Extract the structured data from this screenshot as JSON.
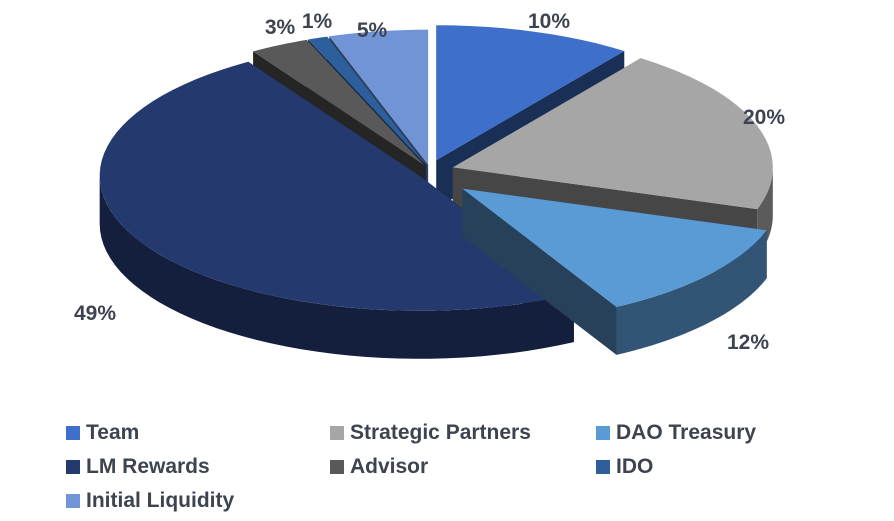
{
  "chart_data": {
    "type": "pie",
    "style": "3d-exploded",
    "legend_position": "bottom",
    "title": "",
    "slices": [
      {
        "label": "Team",
        "value": 10,
        "data_label": "10%",
        "color": "#3d6fcb"
      },
      {
        "label": "Strategic Partners",
        "value": 20,
        "data_label": "20%",
        "color": "#a6a6a6"
      },
      {
        "label": "DAO Treasury",
        "value": 12,
        "data_label": "12%",
        "color": "#5b9bd5"
      },
      {
        "label": "LM Rewards",
        "value": 49,
        "data_label": "49%",
        "color": "#24396e"
      },
      {
        "label": "Advisor",
        "value": 3,
        "data_label": "3%",
        "color": "#595959"
      },
      {
        "label": "IDO",
        "value": 1,
        "data_label": "1%",
        "color": "#2c5f9c"
      },
      {
        "label": "Initial Liquidity",
        "value": 5,
        "data_label": "5%",
        "color": "#7094d6"
      }
    ]
  }
}
